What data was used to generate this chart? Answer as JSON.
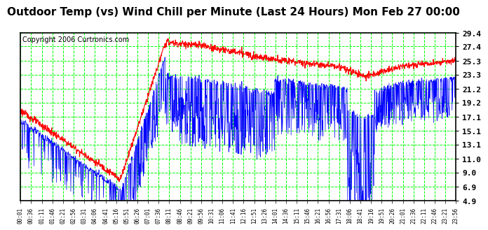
{
  "title": "Outdoor Temp (vs) Wind Chill per Minute (Last 24 Hours) Mon Feb 27 00:00",
  "copyright": "Copyright 2006 Curtronics.com",
  "yticks": [
    4.9,
    6.9,
    9.0,
    11.0,
    13.1,
    15.1,
    17.1,
    19.2,
    21.2,
    23.3,
    25.3,
    27.4,
    29.4
  ],
  "xtick_labels": [
    "00:01",
    "00:36",
    "01:11",
    "01:46",
    "02:21",
    "02:56",
    "03:31",
    "04:06",
    "04:41",
    "05:16",
    "05:51",
    "06:26",
    "07:01",
    "07:36",
    "08:11",
    "08:46",
    "09:21",
    "09:56",
    "10:31",
    "11:06",
    "11:41",
    "12:16",
    "12:51",
    "13:26",
    "14:01",
    "14:36",
    "15:11",
    "15:46",
    "16:21",
    "16:56",
    "17:31",
    "18:06",
    "18:41",
    "19:16",
    "19:51",
    "20:26",
    "21:01",
    "21:36",
    "22:11",
    "22:46",
    "23:21",
    "23:56"
  ],
  "ymin": 4.9,
  "ymax": 29.4,
  "background_color": "#ffffff",
  "plot_bg_color": "#ffffff",
  "grid_color": "#00ff00",
  "red_color": "#ff0000",
  "blue_color": "#0000ff",
  "title_fontsize": 11,
  "copyright_fontsize": 7
}
